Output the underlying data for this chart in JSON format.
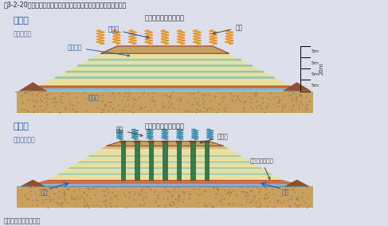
{
  "title": "図3-2-20　閉鎖処分場の温室効果ガス排出削減に伴う環境改善事業",
  "source": "出典：東急建設（株）",
  "bg_color": "#dde0ea",
  "panel_bg": "#f5f6fa",
  "top_title": "実施前",
  "bottom_title": "実施後",
  "top_subtitle": "嫌気的状態",
  "bottom_subtitle": "準好気的状態",
  "top_gas_label": "温室効果の大きいガス",
  "bottom_gas_label": "温室効果の小さいガス",
  "scale_labels": [
    "5m",
    "5m",
    "5m",
    "5m"
  ],
  "scale_total": "20m",
  "colors": {
    "cover_soil": "#c8a060",
    "waste_yellow": "#e8e0a0",
    "waste_stripe": "#d8c878",
    "water_teal": "#90c8b8",
    "water_blue": "#70a8c8",
    "leachate_blue": "#78b8d0",
    "leachate_light": "#b0d8e8",
    "ground_tan": "#c8a060",
    "ground_dot": "#a07840",
    "liner_orange": "#c86030",
    "liner_dark": "#904020",
    "pipe_green": "#3a7a4a",
    "pipe_dark": "#1a4a2a",
    "pipe_cap": "#884422",
    "drain_pipe_blue": "#8ab0c8",
    "flame_orange": "#e89020",
    "wavy_blue": "#4090b0",
    "mound_brown": "#905030",
    "water_pool_teal": "#60a8b0",
    "white": "#ffffff"
  }
}
